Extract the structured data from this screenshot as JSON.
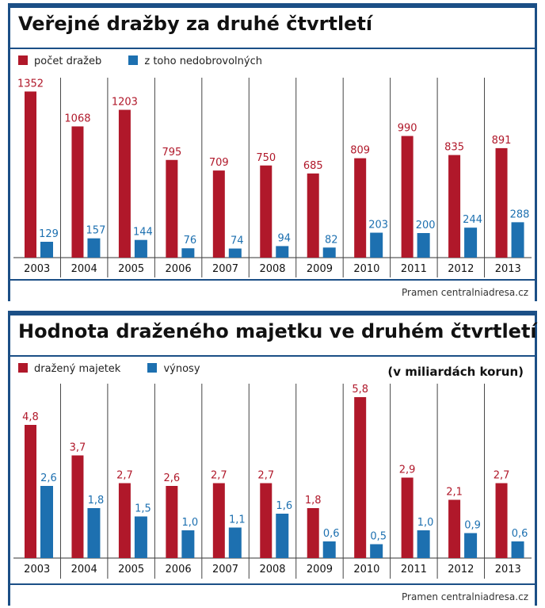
{
  "colors": {
    "red": "#b0182a",
    "blue": "#1d70b0",
    "frame": "#1b4f86"
  },
  "chart_data": [
    {
      "type": "bar",
      "title": "Veřejné dražby za druhé čtvrtletí",
      "categories": [
        "2003",
        "2004",
        "2005",
        "2006",
        "2007",
        "2008",
        "2009",
        "2010",
        "2011",
        "2012",
        "2013"
      ],
      "series": [
        {
          "name": "počet dražeb",
          "values": [
            1352,
            1068,
            1203,
            795,
            709,
            750,
            685,
            809,
            990,
            835,
            891
          ]
        },
        {
          "name": "z toho nedobrovolných",
          "values": [
            129,
            157,
            144,
            76,
            74,
            94,
            82,
            203,
            200,
            244,
            288
          ]
        }
      ],
      "value_labels": [
        [
          "1352",
          "1068",
          "1203",
          "795",
          "709",
          "750",
          "685",
          "809",
          "990",
          "835",
          "891"
        ],
        [
          "129",
          "157",
          "144",
          "76",
          "74",
          "94",
          "82",
          "203",
          "200",
          "244",
          "288"
        ]
      ],
      "ylim": [
        0,
        1400
      ],
      "unit": "",
      "source": "Pramen centralniadresa.cz"
    },
    {
      "type": "bar",
      "title": "Hodnota draženého majetku ve druhém čtvrtletí",
      "categories": [
        "2003",
        "2004",
        "2005",
        "2006",
        "2007",
        "2008",
        "2009",
        "2010",
        "2011",
        "2012",
        "2013"
      ],
      "series": [
        {
          "name": "dražený majetek",
          "values": [
            4.8,
            3.7,
            2.7,
            2.6,
            2.7,
            2.7,
            1.8,
            5.8,
            2.9,
            2.1,
            2.7
          ]
        },
        {
          "name": "výnosy",
          "values": [
            2.6,
            1.8,
            1.5,
            1.0,
            1.1,
            1.6,
            0.6,
            0.5,
            1.0,
            0.9,
            0.6
          ]
        }
      ],
      "value_labels": [
        [
          "4,8",
          "3,7",
          "2,7",
          "2,6",
          "2,7",
          "2,7",
          "1,8",
          "5,8",
          "2,9",
          "2,1",
          "2,7"
        ],
        [
          "2,6",
          "1,8",
          "1,5",
          "1,0",
          "1,1",
          "1,6",
          "0,6",
          "0,5",
          "1,0",
          "0,9",
          "0,6"
        ]
      ],
      "ylim": [
        0,
        6
      ],
      "unit": "(v miliardách korun)",
      "source": "Pramen centralniadresa.cz"
    }
  ]
}
